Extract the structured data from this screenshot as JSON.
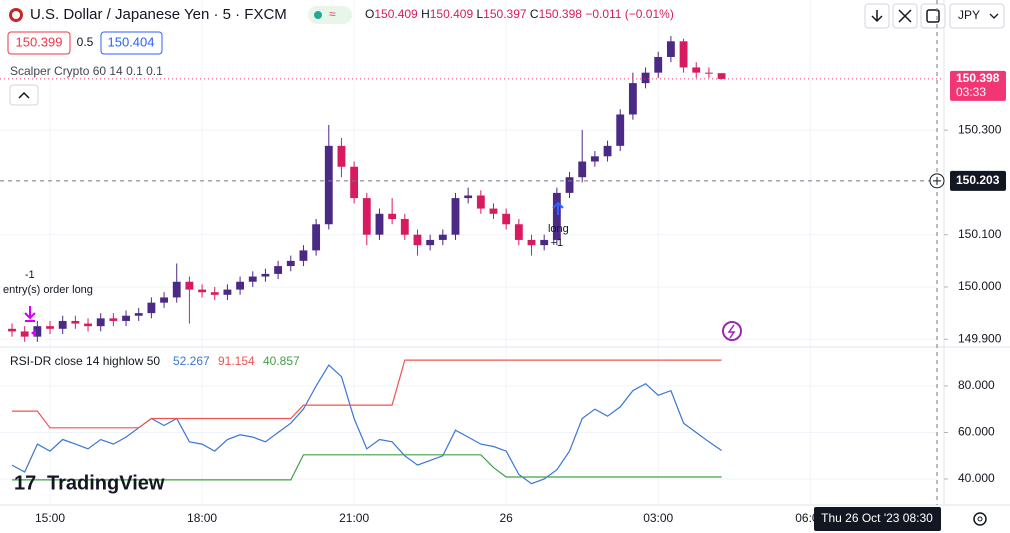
{
  "toolbar": {
    "symbol": "U.S. Dollar / Japanese Yen · 5 · FXCM",
    "o_label": "O",
    "o": "150.409",
    "h_label": "H",
    "h": "150.409",
    "l_label": "L",
    "l": "150.397",
    "c_label": "C",
    "c": "150.398",
    "change": "−0.011 (−0.01%)",
    "sell": "150.399",
    "spread": "0.5",
    "buy": "150.404",
    "currency": "JPY",
    "strategy": "Scalper Crypto 60 14 0.1 0.1",
    "logo": "TradingView"
  },
  "chart_data": [
    {
      "type": "candlestick",
      "x": [
        14.25,
        14.5,
        14.75,
        15,
        15.25,
        15.5,
        15.75,
        16,
        16.25,
        16.5,
        16.75,
        17,
        17.25,
        17.5,
        17.75,
        18,
        18.25,
        18.5,
        18.75,
        19,
        19.25,
        19.5,
        19.75,
        20,
        20.25,
        20.5,
        20.75,
        21,
        21.25,
        21.5,
        21.75,
        22,
        22.25,
        22.5,
        22.75,
        23,
        23.25,
        23.5,
        23.75,
        24,
        24.25,
        24.5,
        24.75,
        25,
        25.25,
        25.5,
        25.75,
        26,
        26.25,
        26.5,
        26.75,
        27,
        27.25,
        27.5,
        27.75,
        28,
        28.25
      ],
      "open": [
        149.92,
        149.915,
        149.905,
        149.925,
        149.92,
        149.935,
        149.93,
        149.925,
        149.94,
        149.935,
        149.945,
        149.95,
        149.97,
        149.98,
        150.01,
        149.995,
        149.99,
        149.985,
        149.995,
        150.01,
        150.02,
        150.025,
        150.04,
        150.05,
        150.07,
        150.12,
        150.27,
        150.23,
        150.17,
        150.1,
        150.14,
        150.13,
        150.1,
        150.08,
        150.09,
        150.1,
        150.17,
        150.175,
        150.15,
        150.14,
        150.12,
        150.09,
        150.08,
        150.09,
        150.18,
        150.21,
        150.24,
        150.25,
        150.27,
        150.33,
        150.39,
        150.41,
        150.44,
        150.47,
        150.42,
        150.41,
        150.409
      ],
      "high": [
        149.93,
        149.925,
        149.935,
        149.935,
        149.945,
        149.945,
        149.94,
        149.95,
        149.95,
        149.955,
        149.96,
        149.98,
        149.99,
        150.045,
        150.02,
        150.005,
        150,
        150.005,
        150.02,
        150.03,
        150.035,
        150.05,
        150.06,
        150.08,
        150.13,
        150.31,
        150.285,
        150.24,
        150.18,
        150.15,
        150.17,
        150.14,
        150.11,
        150.1,
        150.11,
        150.18,
        150.19,
        150.185,
        150.16,
        150.15,
        150.13,
        150.1,
        150.1,
        150.19,
        150.22,
        150.3,
        150.26,
        150.28,
        150.34,
        150.41,
        150.42,
        150.45,
        150.48,
        150.475,
        150.43,
        150.42,
        150.409
      ],
      "low": [
        149.905,
        149.895,
        149.895,
        149.91,
        149.91,
        149.92,
        149.915,
        149.915,
        149.925,
        149.925,
        149.935,
        149.94,
        149.96,
        149.97,
        149.93,
        149.98,
        149.975,
        149.975,
        149.985,
        150,
        150.01,
        150.015,
        150.03,
        150.04,
        150.06,
        150.11,
        150.21,
        150.16,
        150.08,
        150.09,
        150.12,
        150.09,
        150.06,
        150.07,
        150.08,
        150.09,
        150.16,
        150.14,
        150.13,
        150.11,
        150.08,
        150.06,
        150.07,
        150.08,
        150.17,
        150.2,
        150.23,
        150.24,
        150.26,
        150.32,
        150.38,
        150.4,
        150.43,
        150.41,
        150.4,
        150.4,
        150.397
      ],
      "close": [
        149.915,
        149.905,
        149.925,
        149.92,
        149.935,
        149.93,
        149.925,
        149.94,
        149.935,
        149.945,
        149.95,
        149.97,
        149.98,
        150.01,
        149.995,
        149.99,
        149.985,
        149.995,
        150.01,
        150.02,
        150.025,
        150.04,
        150.05,
        150.07,
        150.12,
        150.27,
        150.23,
        150.17,
        150.1,
        150.14,
        150.13,
        150.1,
        150.08,
        150.09,
        150.1,
        150.17,
        150.175,
        150.15,
        150.14,
        150.12,
        150.09,
        150.08,
        150.09,
        150.18,
        150.21,
        150.24,
        150.25,
        150.27,
        150.33,
        150.39,
        150.41,
        150.44,
        150.47,
        150.42,
        150.41,
        150.409,
        150.398
      ],
      "up_color": "#4b2a86",
      "down_color": "#d81b60",
      "xlim": [
        14.013,
        32.52
      ],
      "xticks": [
        {
          "value": 15,
          "label": "15:00"
        },
        {
          "value": 18,
          "label": "18:00"
        },
        {
          "value": 21,
          "label": "21:00"
        },
        {
          "value": 24,
          "label": "26"
        },
        {
          "value": 27,
          "label": "03:00"
        },
        {
          "value": 30,
          "label": "06:00"
        }
      ],
      "ylim": [
        149.889,
        150.549
      ],
      "yticks": [
        {
          "value": 149.9,
          "label": "149.900"
        },
        {
          "value": 150,
          "label": "150.000"
        },
        {
          "value": 150.1,
          "label": "150.100"
        },
        {
          "value": 150.3,
          "label": "150.300"
        }
      ],
      "last_price": {
        "value": 150.398,
        "countdown": "03:33",
        "color": "#f23673"
      },
      "crosshair": {
        "y": {
          "value": 150.203,
          "label": "150.203"
        },
        "x": {
          "value": 32.5,
          "label": "Thu 26 Oct '23 08:30"
        }
      },
      "annotations": [
        {
          "text": "-1",
          "x": 14.6,
          "y": 150.023
        },
        {
          "text": "entry(s) order long",
          "x": 14.96,
          "y": 149.994
        },
        {
          "text": "long",
          "x": 25.03,
          "y": 150.111
        },
        {
          "text": "+1",
          "x": 25.0,
          "y": 150.084
        }
      ]
    },
    {
      "type": "line",
      "title": "RSI-DR close 14 highlow 50",
      "series": [
        {
          "color": "#3a76d6",
          "values": [
            46,
            43,
            55,
            52,
            57,
            55,
            53,
            57,
            55,
            58,
            62,
            66,
            63,
            66,
            56,
            55,
            52,
            57,
            59,
            58,
            56,
            60,
            64,
            70,
            80,
            89,
            84,
            66,
            53,
            57,
            56,
            50,
            46,
            48,
            50,
            61,
            58,
            55,
            54,
            52,
            42,
            38,
            40,
            44,
            52,
            66,
            70,
            67,
            71,
            78,
            81,
            76,
            78,
            64,
            60,
            56,
            52.267
          ]
        },
        {
          "color": "#f05350",
          "values": [
            69.2,
            69.2,
            69.2,
            62,
            62,
            62,
            62,
            62,
            62,
            62,
            62,
            66,
            66,
            66,
            66,
            66,
            66,
            66,
            66,
            66,
            66,
            66,
            66,
            71.8,
            71.8,
            71.8,
            71.8,
            71.8,
            71.8,
            71.8,
            71.8,
            91.154,
            91.154,
            91.154,
            91.154,
            91.154,
            91.154,
            91.154,
            91.154,
            91.154,
            91.154,
            91.154,
            91.154,
            91.154,
            91.154,
            91.154,
            91.154,
            91.154,
            91.154,
            91.154,
            91.154,
            91.154,
            91.154,
            91.154,
            91.154,
            91.154,
            91.154
          ]
        },
        {
          "color": "#43a047",
          "values": [
            39.6,
            39.6,
            39.6,
            39.6,
            39.6,
            39.6,
            39.6,
            39.6,
            39.6,
            39.6,
            39.6,
            39.6,
            39.6,
            39.6,
            39.6,
            39.6,
            39.6,
            39.6,
            39.6,
            39.6,
            39.6,
            39.6,
            39.6,
            50.4,
            50.4,
            50.4,
            50.4,
            50.4,
            50.4,
            50.4,
            50.4,
            50.4,
            50.4,
            50.4,
            50.4,
            50.4,
            50.4,
            50.4,
            44.9,
            40.857,
            40.857,
            40.857,
            40.857,
            40.857,
            40.857,
            40.857,
            40.857,
            40.857,
            40.857,
            40.857,
            40.857,
            40.857,
            40.857,
            40.857,
            40.857,
            40.857,
            40.857
          ]
        }
      ],
      "ylim": [
        28.82,
        95.48
      ],
      "yticks": [
        {
          "value": 40,
          "label": "40.000"
        },
        {
          "value": 60,
          "label": "60.000"
        },
        {
          "value": 80,
          "label": "80.000"
        }
      ]
    }
  ]
}
